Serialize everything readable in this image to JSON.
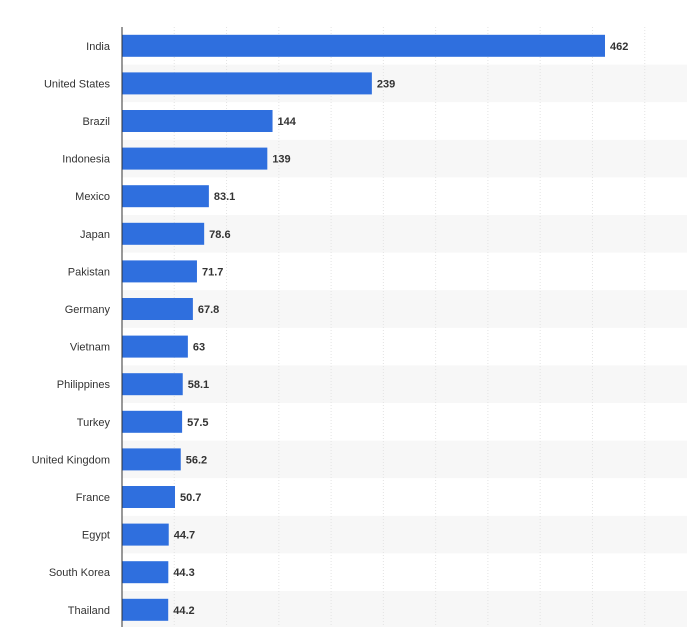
{
  "chart_data": {
    "type": "bar",
    "orientation": "horizontal",
    "categories": [
      "India",
      "United States",
      "Brazil",
      "Indonesia",
      "Mexico",
      "Japan",
      "Pakistan",
      "Germany",
      "Vietnam",
      "Philippines",
      "Turkey",
      "United Kingdom",
      "France",
      "Egypt",
      "South Korea",
      "Thailand"
    ],
    "values": [
      462,
      239,
      144,
      139,
      83.1,
      78.6,
      71.7,
      67.8,
      63,
      58.1,
      57.5,
      56.2,
      50.7,
      44.7,
      44.3,
      44.2
    ],
    "value_labels": [
      "462",
      "239",
      "144",
      "139",
      "83.1",
      "78.6",
      "71.7",
      "67.8",
      "63",
      "58.1",
      "57.5",
      "56.2",
      "50.7",
      "44.7",
      "44.3",
      "44.2"
    ],
    "xlim": [
      0,
      500
    ],
    "grid": true,
    "colors": {
      "bar": "#2f6fde",
      "band": "#f7f7f7",
      "grid": "#e3e3e3",
      "axis": "#333333"
    }
  }
}
